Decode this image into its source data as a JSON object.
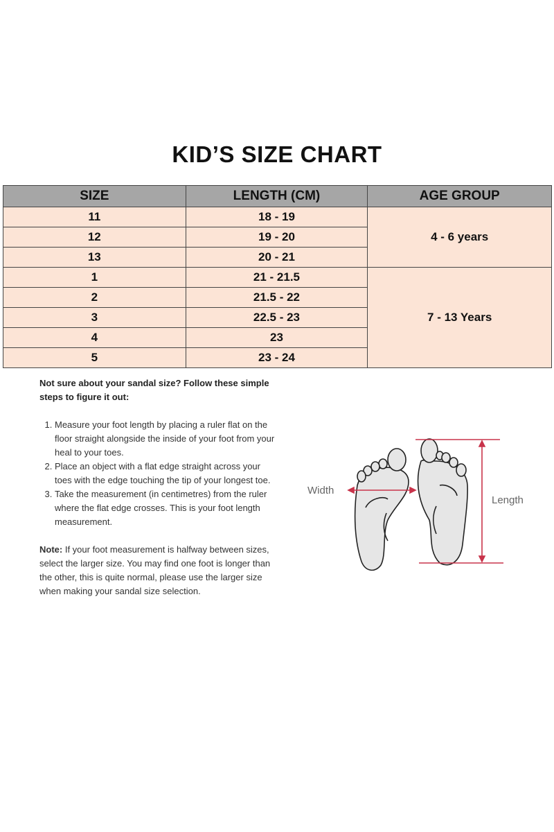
{
  "title": "KID’S SIZE CHART",
  "table": {
    "headers": [
      "SIZE",
      "LENGTH (CM)",
      "AGE GROUP"
    ],
    "rows": [
      {
        "size": "11",
        "length": "18 - 19"
      },
      {
        "size": "12",
        "length": "19 - 20"
      },
      {
        "size": "13",
        "length": "20 - 21"
      },
      {
        "size": "1",
        "length": "21 - 21.5"
      },
      {
        "size": "2",
        "length": "21.5 - 22"
      },
      {
        "size": "3",
        "length": "22.5 - 23"
      },
      {
        "size": "4",
        "length": "23"
      },
      {
        "size": "5",
        "length": "23 - 24"
      }
    ],
    "age_groups": [
      "4 - 6 years",
      "7 - 13 Years"
    ]
  },
  "help": {
    "intro": "Not sure about your sandal size? Follow these simple steps to figure it out:",
    "steps": [
      "Measure your foot length by placing a ruler flat on the floor straight alongside the inside of your foot from your heal to your toes.",
      "Place an object with a flat edge straight across your toes with the edge touching the tip of your longest toe.",
      "Take the measurement (in centimetres) from the ruler where the flat edge crosses. This is your foot length measurement."
    ],
    "note_label": "Note:",
    "note": " If your foot measurement is halfway between sizes, select the larger size. You may find one foot is longer than the other, this is quite normal, please use the larger size when making your sandal size selection."
  },
  "diagram": {
    "width_label": "Width",
    "length_label": "Length",
    "accent": "#c8334a"
  }
}
